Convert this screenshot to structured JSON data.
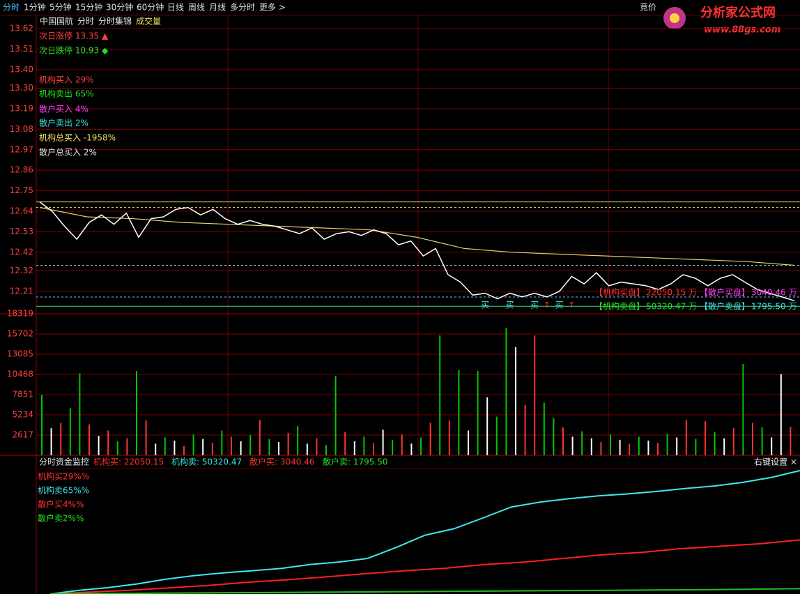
{
  "toolbar": {
    "tabs": [
      "分时",
      "1分钟",
      "5分钟",
      "15分钟",
      "30分钟",
      "60分钟",
      "日线",
      "周线",
      "月线",
      "多分时",
      "更多 >"
    ],
    "active": 0,
    "right": "竞价"
  },
  "logo": {
    "title": "分析家公式网",
    "url": "www.88gs.com"
  },
  "price_panel": {
    "header": [
      "中国国航",
      "分时",
      "分时集锦",
      "成交量"
    ],
    "notes": [
      {
        "text": "次日涨停 13.35 ▲",
        "color": "#ff4040"
      },
      {
        "text": "次日跌停 10.93 ◆",
        "color": "#20e020"
      },
      {
        "text": "机构买入 29%",
        "color": "#ff4040"
      },
      {
        "text": "机构卖出 65%",
        "color": "#20e020"
      },
      {
        "text": "散户买入 4%",
        "color": "#ff40ff"
      },
      {
        "text": "散户卖出 2%",
        "color": "#40e0e0"
      },
      {
        "text": "机构总买入 -1958%",
        "color": "#f0e060"
      },
      {
        "text": "散户总买入 2%",
        "color": "#e0e0e0"
      }
    ],
    "ylim": [
      12.09,
      13.65
    ],
    "yticks": [
      13.62,
      13.51,
      {
        "value": 13.4,
        "label": "13.40"
      },
      {
        "value": 13.3,
        "label": "13.30"
      },
      13.19,
      13.08,
      12.97,
      12.86,
      12.75,
      12.64,
      12.53,
      12.42,
      12.32,
      12.21
    ],
    "price": [
      12.69,
      12.64,
      12.56,
      12.49,
      12.58,
      12.62,
      12.57,
      12.63,
      12.5,
      12.6,
      12.61,
      12.65,
      12.66,
      12.62,
      12.65,
      12.6,
      12.57,
      12.59,
      12.57,
      12.56,
      12.54,
      12.52,
      12.55,
      12.49,
      12.52,
      12.53,
      12.51,
      12.54,
      12.52,
      12.46,
      12.48,
      12.4,
      12.44,
      12.3,
      12.26,
      12.19,
      12.2,
      12.17,
      12.2,
      12.18,
      12.2,
      12.18,
      12.21,
      12.29,
      12.25,
      12.31,
      12.24,
      12.26,
      12.25,
      12.24,
      12.22,
      12.25,
      12.3,
      12.28,
      12.24,
      12.28,
      12.3,
      12.26,
      12.22,
      12.2,
      12.18,
      12.16
    ],
    "price_color": "#ffffff",
    "avg": [
      12.66,
      12.61,
      12.6,
      12.58,
      12.57,
      12.56,
      12.55,
      12.54,
      12.5,
      12.44,
      12.42,
      12.41,
      12.4,
      12.39,
      12.38,
      12.37,
      12.35
    ],
    "avg_color": "#e0d070",
    "ref_lines": [
      {
        "value": 12.69,
        "color": "#f0e060",
        "dashed": false
      },
      {
        "value": 12.66,
        "color": "#f0e060",
        "dashed": true
      },
      {
        "value": 12.35,
        "color": "#c0c0c0",
        "dashed": true
      },
      {
        "value": 12.18,
        "color": "#60c0ff",
        "dashed": true
      },
      {
        "value": 12.13,
        "color": "#40e080",
        "dashed": false
      }
    ],
    "signals": [
      {
        "text": "买",
        "at": 36,
        "color": "#40e0e0"
      },
      {
        "text": "买",
        "at": 38,
        "color": "#40e0e0"
      },
      {
        "text": "买",
        "at": 40,
        "color": "#40e0e0"
      },
      {
        "text": "↑",
        "at": 41,
        "color": "#ff3030"
      },
      {
        "text": "买",
        "at": 42,
        "color": "#40e0e0"
      },
      {
        "text": "↑",
        "at": 43,
        "color": "#ff3030"
      }
    ],
    "annotations": [
      [
        {
          "text": "【机构买盘】",
          "color": "#ff3030"
        },
        {
          "text": "22050.15 万",
          "color": "#ff3030"
        },
        {
          "text": "【散户买盘】",
          "color": "#ff40ff"
        },
        {
          "text": "3040.46 万",
          "color": "#ff40ff"
        }
      ],
      [
        {
          "text": "【机构卖盘】",
          "color": "#20e020"
        },
        {
          "text": "50320.47 万",
          "color": "#20e020"
        },
        {
          "text": "【散户卖盘】",
          "color": "#40e0e0"
        },
        {
          "text": "1795.50 万",
          "color": "#40e0e0"
        }
      ]
    ]
  },
  "volume_panel": {
    "ylim": [
      0,
      18319
    ],
    "yticks": [
      18319,
      15702,
      13085,
      10468,
      7851,
      5234,
      2617
    ],
    "palette": {
      "r": "#ff3232",
      "g": "#00c800",
      "w": "#ffffff"
    },
    "values": [
      7800,
      3500,
      4200,
      6100,
      10600,
      4000,
      2500,
      3200,
      1800,
      2200,
      10900,
      4500,
      1500,
      2300,
      1900,
      1200,
      2700,
      2100,
      1600,
      3200,
      2400,
      1800,
      2600,
      4600,
      2100,
      1700,
      2900,
      3800,
      1500,
      2200,
      1300,
      10300,
      3000,
      1800,
      2400,
      1600,
      3300,
      2000,
      2700,
      1500,
      2300,
      4200,
      15500,
      4500,
      11000,
      3200,
      10900,
      7500,
      5000,
      16500,
      14000,
      6500,
      15500,
      6800,
      4800,
      3600,
      2400,
      3100,
      2200,
      1700,
      2700,
      2000,
      1500,
      2400,
      1900,
      1600,
      2800,
      2300,
      4600,
      2100,
      4400,
      3000,
      2200,
      3500,
      11800,
      4200,
      3600,
      2300,
      10500,
      3700
    ],
    "kinds": [
      "g",
      "w",
      "r",
      "g",
      "g",
      "r",
      "w",
      "r",
      "g",
      "r",
      "g",
      "r",
      "w",
      "g",
      "w",
      "r",
      "g",
      "w",
      "r",
      "g",
      "r",
      "w",
      "g",
      "r",
      "g",
      "w",
      "r",
      "g",
      "w",
      "r",
      "g",
      "g",
      "r",
      "w",
      "g",
      "r",
      "w",
      "g",
      "r",
      "w",
      "g",
      "r",
      "g",
      "r",
      "g",
      "w",
      "g",
      "w",
      "g",
      "g",
      "w",
      "r",
      "r",
      "g",
      "g",
      "r",
      "w",
      "g",
      "w",
      "r",
      "g",
      "w",
      "r",
      "g",
      "w",
      "r",
      "g",
      "w",
      "r",
      "g",
      "r",
      "g",
      "w",
      "r",
      "g",
      "r",
      "g",
      "w",
      "w",
      "r"
    ]
  },
  "flow_panel": {
    "header": [
      "分时资金监控",
      "机构买: 22050.15",
      "机构卖: 50320.47",
      "散户买: 3040.46",
      "散户卖: 1795.50"
    ],
    "header_colors": [
      "#e0e0e0",
      "#ff3030",
      "#40e0e0",
      "#ff3030",
      "#20e020"
    ],
    "settings": "右键设置 ×",
    "legend": [
      {
        "text": "机构买29%%",
        "color": "#ff3030"
      },
      {
        "text": "机构卖65%%",
        "color": "#40e0e0"
      },
      {
        "text": "散户买4%%",
        "color": "#ff3030"
      },
      {
        "text": "散户卖2%%",
        "color": "#20e020"
      }
    ],
    "ylim": [
      0,
      50320.47
    ],
    "series": [
      {
        "color": "#40e8f0",
        "values": [
          0,
          1500,
          2600,
          4100,
          6000,
          7500,
          8600,
          9500,
          10400,
          12000,
          13000,
          14500,
          19000,
          24000,
          26600,
          31000,
          35500,
          37500,
          38900,
          40000,
          40800,
          41800,
          43000,
          44000,
          45500,
          47500,
          50320.47
        ]
      },
      {
        "color": "#ff2020",
        "values": [
          0,
          800,
          1500,
          2500,
          3500,
          4800,
          5800,
          7000,
          8300,
          9500,
          10500,
          12000,
          13000,
          14500,
          16000,
          17000,
          18500,
          19500,
          20500,
          22050.15
        ]
      },
      {
        "color": "#20c020",
        "values": [
          0,
          200,
          350,
          500,
          650,
          800,
          950,
          1100,
          1250,
          1400,
          1550,
          1700,
          1900,
          2200
        ]
      }
    ]
  }
}
